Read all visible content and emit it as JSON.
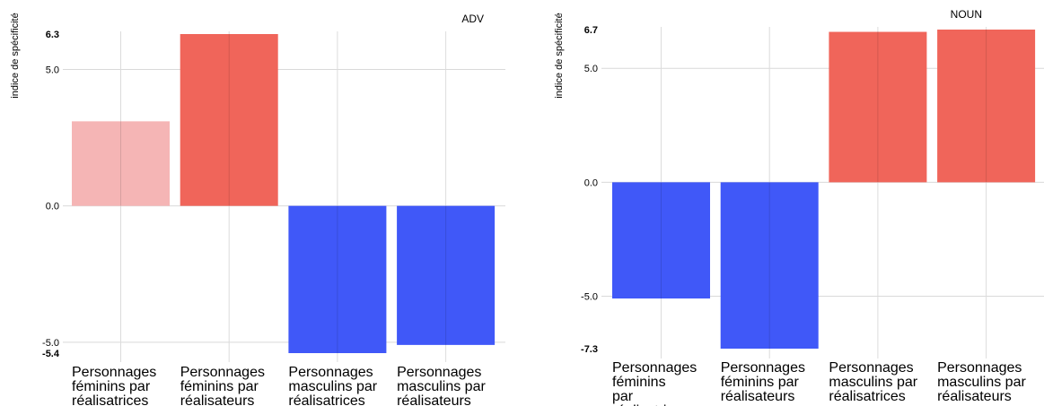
{
  "chart_data": [
    {
      "type": "bar",
      "title": "ADV",
      "ylabel": "indice de spécificité",
      "categories": [
        [
          "Personnages",
          "féminins par",
          "réalisatrices"
        ],
        [
          "Personnages",
          "féminins par",
          "réalisateurs"
        ],
        [
          "Personnages",
          "masculins par",
          "réalisatrices"
        ],
        [
          "Personnages",
          "masculins par",
          "réalisateurs"
        ]
      ],
      "values": [
        3.1,
        6.3,
        -5.4,
        -5.1
      ],
      "bar_colors": [
        "#f5b5b5",
        "#f0655a",
        "#4058f8",
        "#4058f8"
      ],
      "ylim": [
        -5.4,
        6.3
      ],
      "yticks": [
        {
          "value": 6.3,
          "label": "6.3",
          "bold": true
        },
        {
          "value": 5.0,
          "label": "5.0",
          "bold": false
        },
        {
          "value": 0.0,
          "label": "0.0",
          "bold": false
        },
        {
          "value": -5.0,
          "label": "-5.0",
          "bold": false
        },
        {
          "value": -5.4,
          "label": "-5.4",
          "bold": true
        }
      ],
      "grid": true
    },
    {
      "type": "bar",
      "title": "NOUN",
      "ylabel": "indice de spécificité",
      "categories": [
        [
          "Personnages",
          "féminins",
          "par",
          "réalisatrices"
        ],
        [
          "Personnages",
          "féminins par",
          "réalisateurs"
        ],
        [
          "Personnages",
          "masculins par",
          "réalisatrices"
        ],
        [
          "Personnages",
          "masculins par",
          "réalisateurs"
        ]
      ],
      "values": [
        -5.1,
        -7.3,
        6.6,
        6.7
      ],
      "bar_colors": [
        "#4058f8",
        "#4058f8",
        "#f0655a",
        "#f0655a"
      ],
      "ylim": [
        -7.3,
        6.7
      ],
      "yticks": [
        {
          "value": 6.7,
          "label": "6.7",
          "bold": true
        },
        {
          "value": 5.0,
          "label": "5.0",
          "bold": false
        },
        {
          "value": 0.0,
          "label": "0.0",
          "bold": false
        },
        {
          "value": -5.0,
          "label": "-5.0",
          "bold": false
        },
        {
          "value": -7.3,
          "label": "-7.3",
          "bold": true
        }
      ],
      "grid": true
    }
  ]
}
